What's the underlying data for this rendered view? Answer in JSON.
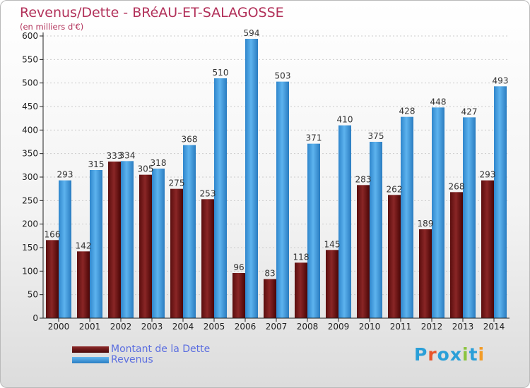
{
  "title": "Revenus/Dette - BRéAU-ET-SALAGOSSE",
  "subtitle": "(en milliers d'€)",
  "brand": {
    "text": "Proxiti",
    "letter_colors": [
      "#2a9fd8",
      "#e8552b",
      "#2a9fd8",
      "#2a9fd8",
      "#8bc43f",
      "#2a9fd8",
      "#f39c27"
    ]
  },
  "colors": {
    "dette": "#7a1b1b",
    "revenus": "#3d9ae0",
    "axis": "#222222",
    "grid": "#cccccc"
  },
  "legend": [
    {
      "label": "Montant de la Dette",
      "series": "dette"
    },
    {
      "label": "Revenus",
      "series": "revenus"
    }
  ],
  "chart_data": {
    "type": "bar",
    "title": "Revenus/Dette - BRéAU-ET-SALAGOSSE",
    "ylabel": "(en milliers d'€)",
    "xlabel": "",
    "ylim": [
      0,
      600
    ],
    "yticks": [
      0,
      50,
      100,
      150,
      200,
      250,
      300,
      350,
      400,
      450,
      500,
      550,
      600
    ],
    "grid": true,
    "legend_position": "bottom-left",
    "categories": [
      "2000",
      "2001",
      "2002",
      "2003",
      "2004",
      "2005",
      "2006",
      "2007",
      "2008",
      "2009",
      "2010",
      "2011",
      "2012",
      "2013",
      "2014"
    ],
    "series": [
      {
        "name": "Montant de la Dette",
        "key": "dette",
        "values": [
          166,
          142,
          333,
          305,
          275,
          253,
          96,
          83,
          118,
          145,
          283,
          262,
          189,
          268,
          293
        ]
      },
      {
        "name": "Revenus",
        "key": "revenus",
        "values": [
          293,
          315,
          334,
          318,
          368,
          510,
          594,
          503,
          371,
          410,
          375,
          428,
          448,
          427,
          493
        ]
      }
    ]
  }
}
